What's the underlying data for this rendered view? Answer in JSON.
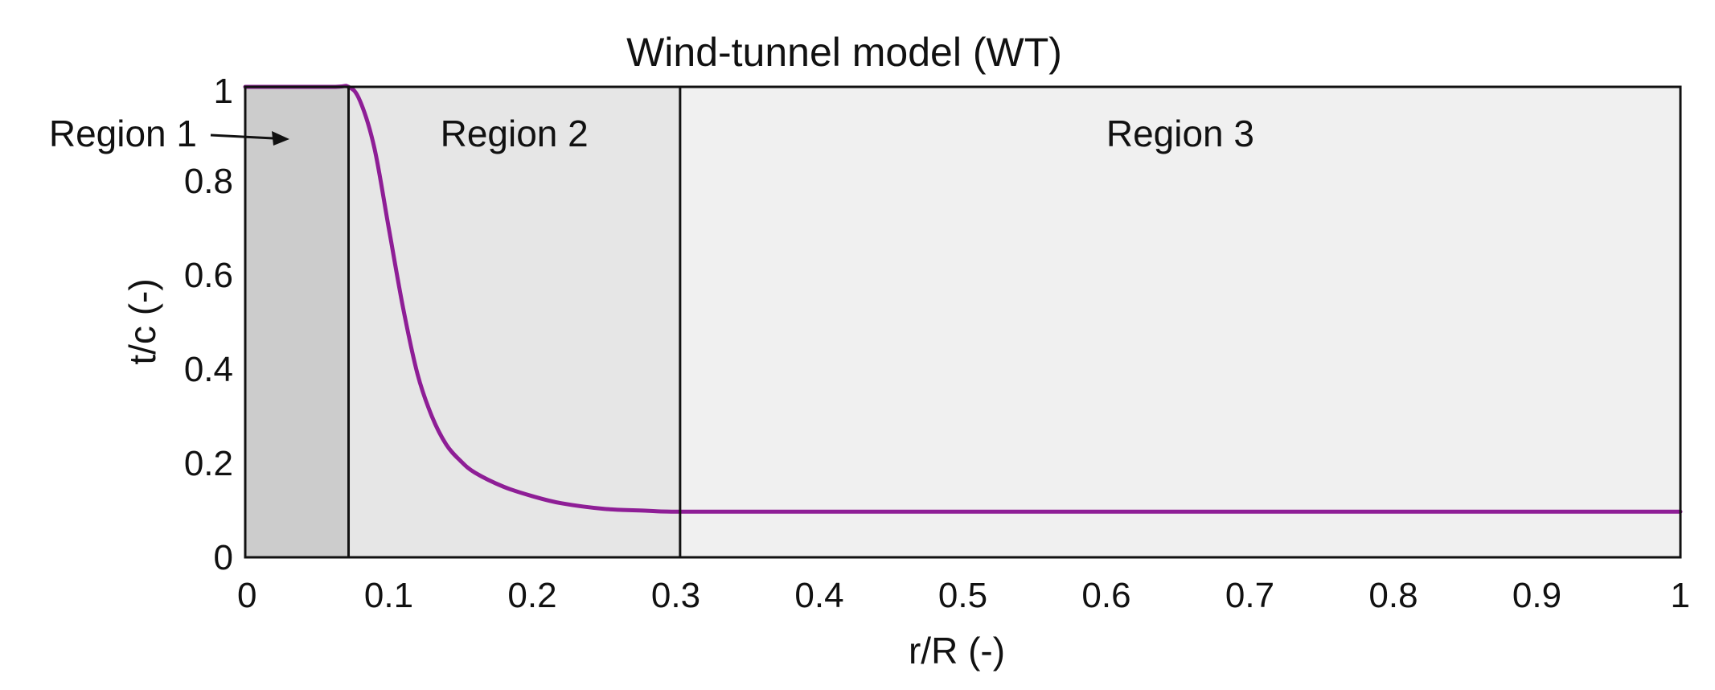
{
  "chart_data": {
    "type": "line",
    "title": "Wind-tunnel model (WT)",
    "xlabel": "r/R (-)",
    "ylabel": "t/c (-)",
    "xlim": [
      0,
      1
    ],
    "ylim": [
      0,
      1
    ],
    "x_ticks": [
      {
        "value": 0,
        "label": "0"
      },
      {
        "value": 0.1,
        "label": "0.1"
      },
      {
        "value": 0.2,
        "label": "0.2"
      },
      {
        "value": 0.3,
        "label": "0.3"
      },
      {
        "value": 0.4,
        "label": "0.4"
      },
      {
        "value": 0.5,
        "label": "0.5"
      },
      {
        "value": 0.6,
        "label": "0.6"
      },
      {
        "value": 0.7,
        "label": "0.7"
      },
      {
        "value": 0.8,
        "label": "0.8"
      },
      {
        "value": 0.9,
        "label": "0.9"
      },
      {
        "value": 1,
        "label": "1"
      }
    ],
    "y_ticks": [
      {
        "value": 0,
        "label": "0"
      },
      {
        "value": 0.2,
        "label": "0.2"
      },
      {
        "value": 0.4,
        "label": "0.4"
      },
      {
        "value": 0.6,
        "label": "0.6"
      },
      {
        "value": 0.8,
        "label": "0.8"
      },
      {
        "value": 1,
        "label": "1"
      }
    ],
    "grid": false,
    "regions": [
      {
        "label": "Region 1",
        "x_start": 0,
        "x_end": 0.072,
        "color": "#cccccc",
        "label_style": "arrow-outside"
      },
      {
        "label": "Region 2",
        "x_start": 0.072,
        "x_end": 0.303,
        "color": "#e6e6e6"
      },
      {
        "label": "Region 3",
        "x_start": 0.303,
        "x_end": 1,
        "color": "#f0f0f0"
      }
    ],
    "series": [
      {
        "color": "#8e1e96",
        "x": [
          0,
          0.06,
          0.072,
          0.08,
          0.09,
          0.1,
          0.11,
          0.12,
          0.13,
          0.14,
          0.15,
          0.16,
          0.18,
          0.2,
          0.22,
          0.25,
          0.28,
          0.303,
          0.4,
          0.5,
          0.6,
          0.7,
          0.8,
          0.9,
          1.0
        ],
        "values": [
          1.0,
          1.0,
          1.0,
          0.97,
          0.87,
          0.7,
          0.53,
          0.39,
          0.3,
          0.24,
          0.205,
          0.18,
          0.15,
          0.13,
          0.115,
          0.103,
          0.099,
          0.097,
          0.097,
          0.097,
          0.097,
          0.097,
          0.097,
          0.097,
          0.097
        ]
      }
    ]
  }
}
